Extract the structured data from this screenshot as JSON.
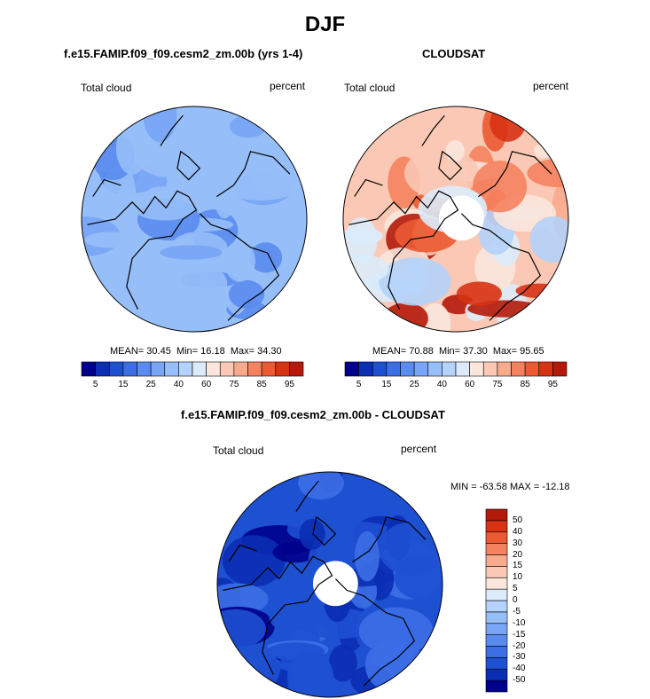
{
  "page_title": "DJF",
  "colors": {
    "background": "#ffffff",
    "coastline": "#000000",
    "map_edge": "#000000"
  },
  "chart_data": [
    {
      "type": "heatmap",
      "projection": "polar-stereographic-north",
      "title": "f.e15.FAMIP.f09_f09.cesm2_zm.00b (yrs 1-4)",
      "left_label": "Total cloud",
      "right_label": "percent",
      "stats": {
        "mean_label": "MEAN=",
        "mean": "30.45",
        "min_label": "Min=",
        "min": "16.18",
        "max_label": "Max=",
        "max": "34.30"
      },
      "colorbar_ticks": [
        "5",
        "15",
        "25",
        "40",
        "60",
        "75",
        "85",
        "95"
      ],
      "levels": [
        5,
        10,
        15,
        20,
        25,
        30,
        40,
        50,
        60,
        70,
        75,
        80,
        85,
        90,
        95
      ],
      "field_value": 30,
      "missing_pole": false
    },
    {
      "type": "heatmap",
      "projection": "polar-stereographic-north",
      "title": "CLOUDSAT",
      "left_label": "Total cloud",
      "right_label": "percent",
      "stats": {
        "mean_label": "MEAN=",
        "mean": "70.88",
        "min_label": "Min=",
        "min": "37.30",
        "max_label": "Max=",
        "max": "95.65"
      },
      "colorbar_ticks": [
        "5",
        "15",
        "25",
        "40",
        "60",
        "75",
        "85",
        "95"
      ],
      "levels": [
        5,
        10,
        15,
        20,
        25,
        30,
        40,
        50,
        60,
        70,
        75,
        80,
        85,
        90,
        95
      ],
      "field_value": 71,
      "missing_pole": true
    },
    {
      "type": "heatmap",
      "projection": "polar-stereographic-north",
      "title": "f.e15.FAMIP.f09_f09.cesm2_zm.00b - CLOUDSAT",
      "left_label": "Total cloud",
      "right_label": "percent",
      "stats": {
        "text": "MIN = -63.58 MAX = -12.18"
      },
      "colorbar_ticks": [
        "50",
        "40",
        "30",
        "20",
        "15",
        "10",
        "5",
        "0",
        "-5",
        "-10",
        "-15",
        "-20",
        "-30",
        "-40",
        "-50"
      ],
      "levels": [
        -50,
        -40,
        -30,
        -20,
        -15,
        -10,
        -5,
        0,
        5,
        10,
        15,
        20,
        30,
        40,
        50
      ],
      "field_value": -40,
      "missing_pole": true
    }
  ],
  "palette": [
    "#00008c",
    "#0a2eb4",
    "#1e50d2",
    "#3c6ee6",
    "#5a8cf0",
    "#78a5f5",
    "#96bef8",
    "#b4d2fa",
    "#dcebfa",
    "#fae6dc",
    "#fac8b4",
    "#f8aa8c",
    "#f5825f",
    "#eb5a32",
    "#d73214",
    "#b4190a",
    "#820000"
  ]
}
